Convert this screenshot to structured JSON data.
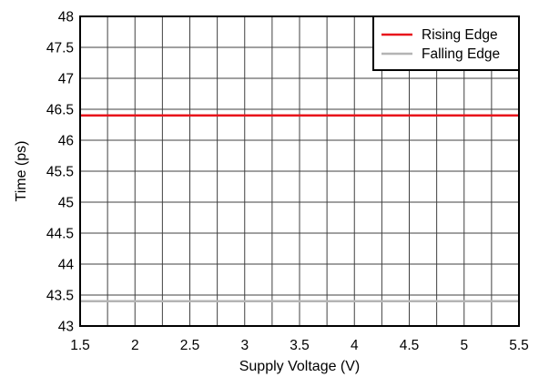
{
  "chart_data": {
    "type": "line",
    "title": "",
    "xlabel": "Supply Voltage (V)",
    "ylabel": "Time (ps)",
    "xlim": [
      1.5,
      5.5
    ],
    "ylim": [
      43,
      48
    ],
    "x_ticks": [
      "1.5",
      "2",
      "2.5",
      "3",
      "3.5",
      "4",
      "4.5",
      "5",
      "5.5"
    ],
    "y_ticks": [
      "43",
      "43.5",
      "44",
      "44.5",
      "45",
      "45.5",
      "46",
      "46.5",
      "47",
      "47.5",
      "48"
    ],
    "x_minor_step": 0.25,
    "grid": true,
    "legend_position": "top-right",
    "series": [
      {
        "name": "Rising Edge",
        "color": "#e8141b",
        "x": [
          1.5,
          5.5
        ],
        "y": [
          46.4,
          46.4
        ]
      },
      {
        "name": "Falling Edge",
        "color": "#b4b4b4",
        "x": [
          1.5,
          5.5
        ],
        "y": [
          43.4,
          43.4
        ]
      }
    ]
  }
}
